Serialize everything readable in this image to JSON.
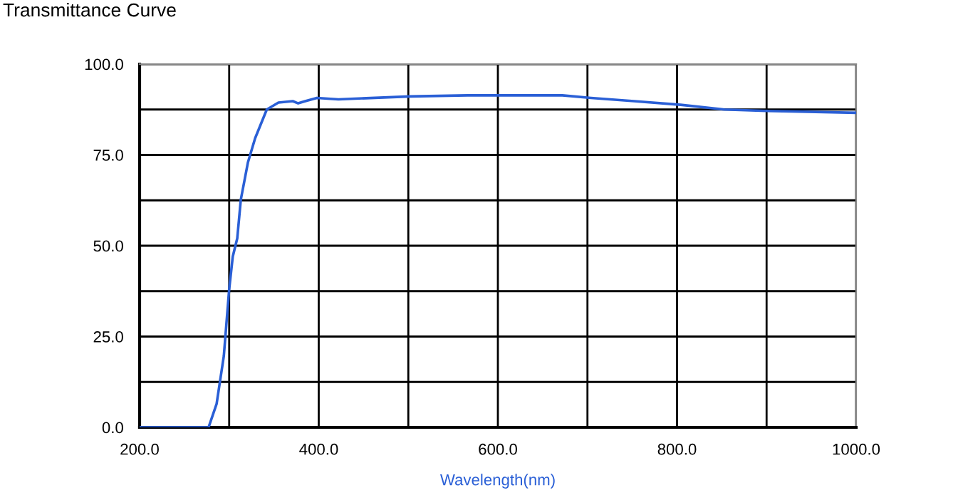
{
  "chart_data": {
    "type": "line",
    "title": "Transmittance Curve",
    "xlabel": "Wavelength(nm)",
    "series": [
      {
        "color": "#2a5fd6",
        "x": [
          200,
          277,
          286,
          294,
          300,
          304,
          309,
          313,
          321,
          329,
          342,
          355,
          371,
          377,
          385,
          398,
          422,
          502,
          566,
          672,
          704,
          752,
          804,
          853,
          900,
          1000
        ],
        "values": [
          0,
          0,
          6.5,
          19.6,
          38,
          47,
          52,
          62.7,
          73,
          79.6,
          87.5,
          89.4,
          89.8,
          89.2,
          89.8,
          90.7,
          90.3,
          91.1,
          91.4,
          91.4,
          90.7,
          89.8,
          88.8,
          87.5,
          87.1,
          86.6
        ]
      }
    ],
    "xlim": [
      200,
      1000
    ],
    "xticks": [
      {
        "value": 200,
        "label": "200.0"
      },
      {
        "value": 300,
        "label": null
      },
      {
        "value": 400,
        "label": "400.0"
      },
      {
        "value": 500,
        "label": null
      },
      {
        "value": 600,
        "label": "600.0"
      },
      {
        "value": 700,
        "label": null
      },
      {
        "value": 800,
        "label": "800.0"
      },
      {
        "value": 900,
        "label": null
      },
      {
        "value": 1000,
        "label": "1000.0"
      }
    ],
    "ylim": [
      0,
      100
    ],
    "yticks": [
      {
        "value": 0,
        "label": "0.0"
      },
      {
        "value": 12.5,
        "label": null
      },
      {
        "value": 25,
        "label": "25.0"
      },
      {
        "value": 37.5,
        "label": null
      },
      {
        "value": 50,
        "label": "50.0"
      },
      {
        "value": 62.5,
        "label": null
      },
      {
        "value": 75,
        "label": "75.0"
      },
      {
        "value": 87.5,
        "label": null
      },
      {
        "value": 100,
        "label": "100.0"
      }
    ],
    "grid": true,
    "marker": "none",
    "line_style": "solid"
  }
}
